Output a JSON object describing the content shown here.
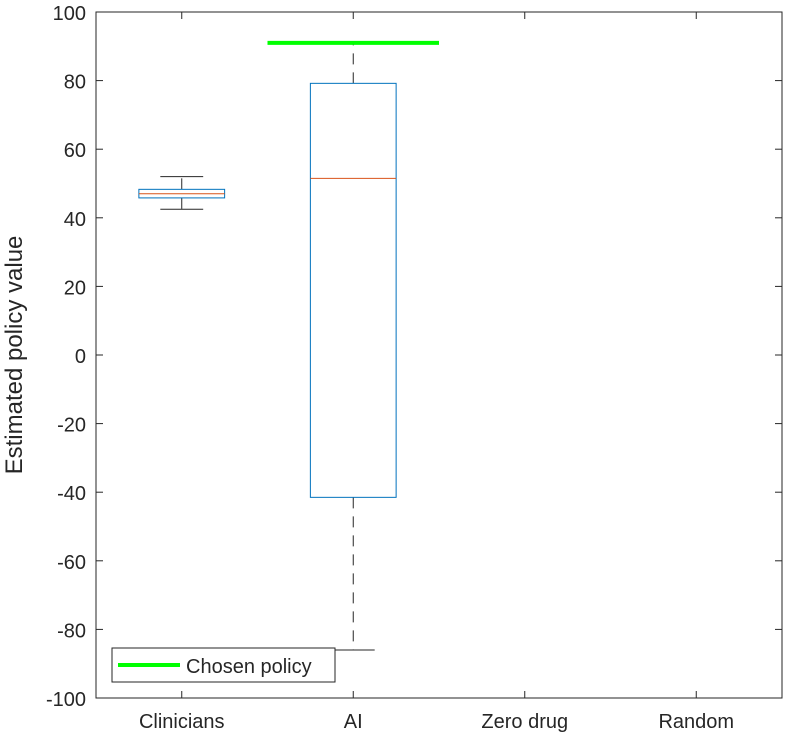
{
  "chart_data": {
    "type": "box",
    "title": "",
    "xlabel": "",
    "ylabel": "Estimated policy value",
    "ylim": [
      -100,
      100
    ],
    "yticks": [
      -100,
      -80,
      -60,
      -40,
      -20,
      0,
      20,
      40,
      60,
      80,
      100
    ],
    "ytick_labels": [
      "-100",
      "-80",
      "-60",
      "-40",
      "-20",
      "0",
      "20",
      "40",
      "60",
      "80",
      "100"
    ],
    "categories": [
      "Clinicians",
      "AI",
      "Zero drug",
      "Random"
    ],
    "boxes": [
      {
        "category": "Clinicians",
        "whisker_low": 42.5,
        "q1": 45.8,
        "median": 47.0,
        "q3": 48.3,
        "whisker_high": 52.0
      },
      {
        "category": "AI",
        "whisker_low": -86.0,
        "q1": -41.5,
        "median": 51.5,
        "q3": 79.2,
        "whisker_high": 91.0
      }
    ],
    "chosen_policy": {
      "category": "AI",
      "value": 91.0
    },
    "legend": {
      "label": "Chosen policy",
      "location": "bottom-left"
    },
    "grid": false,
    "colors": {
      "box": "#0072bd",
      "median": "#d95319",
      "whisker": "#262626",
      "chosen": "#00ff00",
      "axis": "#262626"
    }
  }
}
